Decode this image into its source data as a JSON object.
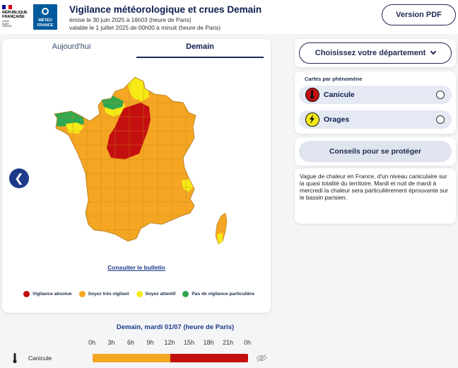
{
  "header": {
    "rf_title_lines": [
      "RÉPUBLIQUE",
      "FRANÇAISE"
    ],
    "rf_motto_lines": [
      "Liberté",
      "Égalité",
      "Fraternité"
    ],
    "mf_lines": [
      "MÉTÉO",
      "FRANCE"
    ],
    "title": "Vigilance météorologique et crues Demain",
    "emitted": "émise le 30 juin 2025 à 16h03 (heure de Paris)",
    "valid": "valable le 1 juillet 2025 de 00h00 à minuit (heure de Paris)",
    "pdf_button": "Version PDF"
  },
  "tabs": {
    "today": "Aujourd'hui",
    "tomorrow": "Demain"
  },
  "map": {
    "bulletin_link": "Consulter le bulletin",
    "prev_icon": "chevron-left-icon",
    "legend": [
      {
        "label": "Vigilance absolue",
        "color": "#c40f0f"
      },
      {
        "label": "Soyez très vigilant",
        "color": "#f5a623"
      },
      {
        "label": "Soyez attentif",
        "color": "#f5ea16"
      },
      {
        "label": "Pas de vigilance particulière",
        "color": "#2fa84f"
      }
    ]
  },
  "sidebar": {
    "dept_select": "Choisissez votre département",
    "phenomena_title": "Cartes par phénomène",
    "phenomena": [
      {
        "label": "Canicule",
        "icon": "thermometer-icon"
      },
      {
        "label": "Orages",
        "icon": "lightning-icon"
      }
    ],
    "advice_button": "Conseils pour se protéger",
    "description": "Vague de chaleur en France, d'un niveau caniculaire sur la quasi totalité du territoire. Mardi et nuit de mardi à mercredi la chaleur sera particulièrement éprouvante sur le bassin parisien."
  },
  "timeline": {
    "title": "Demain, mardi 01/07 (heure de Paris)",
    "hours": [
      "0h",
      "3h",
      "6h",
      "9h",
      "12h",
      "15h",
      "18h",
      "21h",
      "0h"
    ],
    "row_label": "Canicule",
    "segments": [
      {
        "from": 0,
        "to": 12,
        "color": "#f5a623"
      },
      {
        "from": 12,
        "to": 24,
        "color": "#c40f0f"
      }
    ]
  }
}
